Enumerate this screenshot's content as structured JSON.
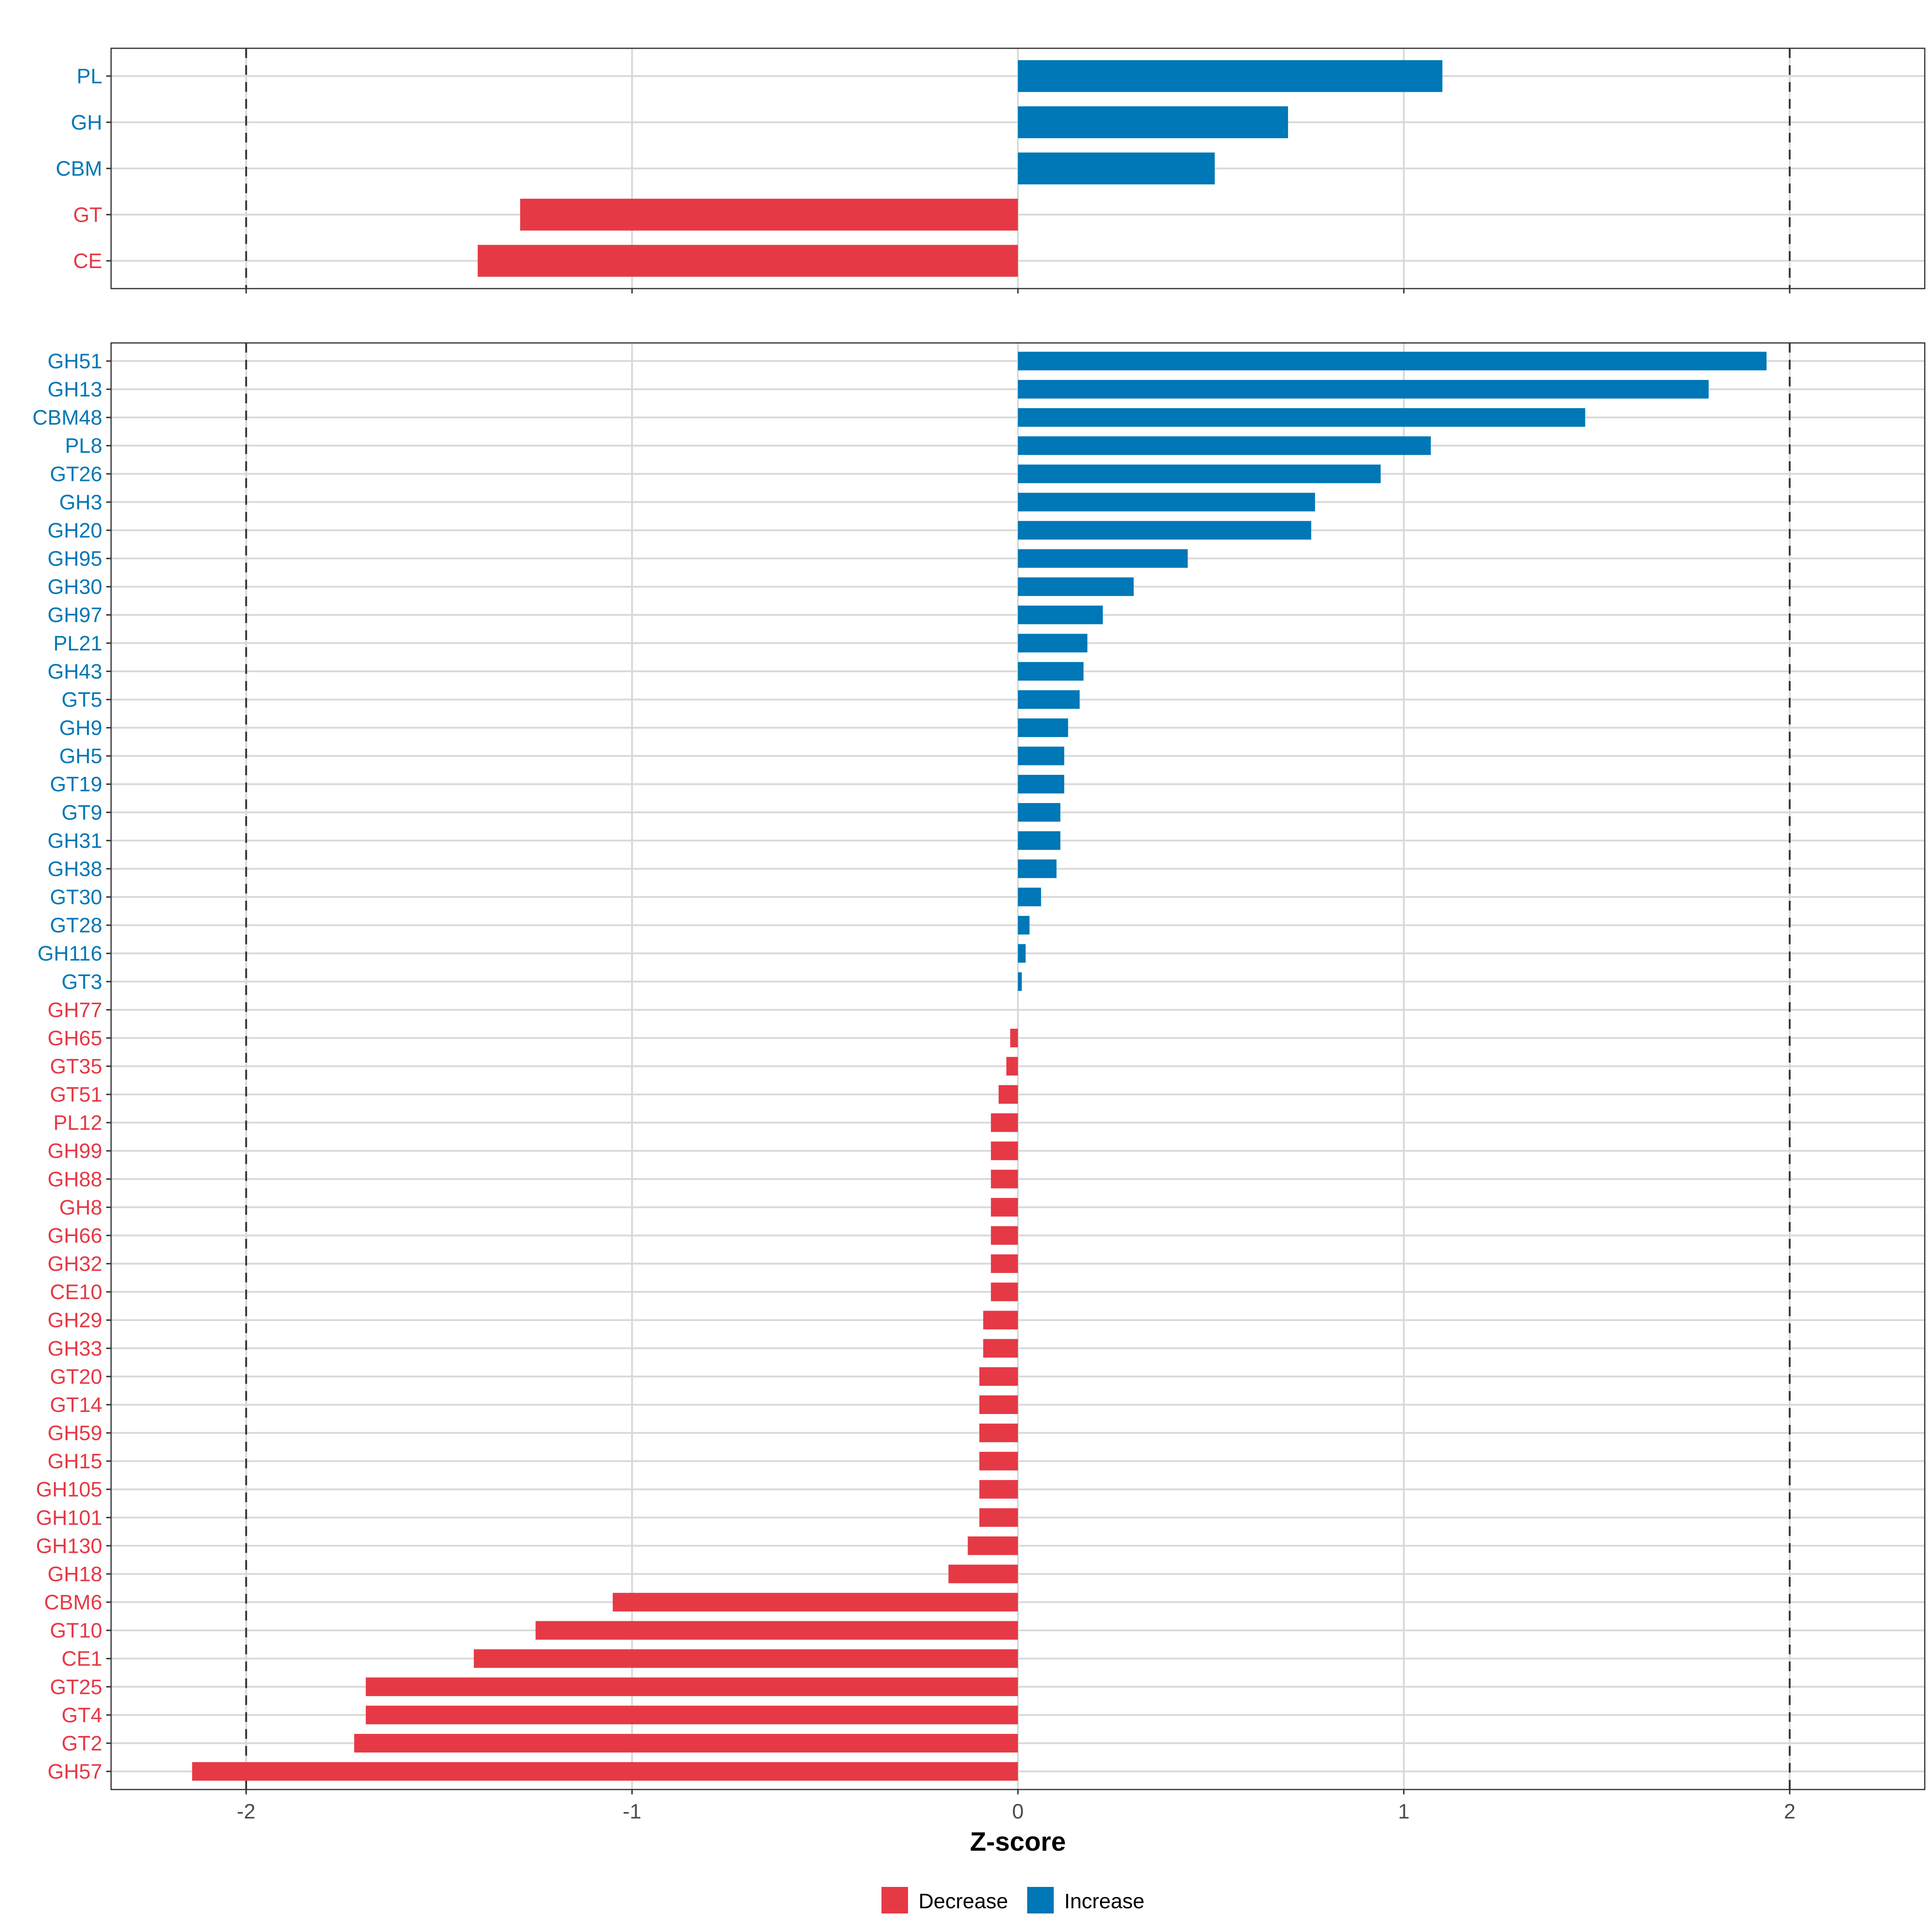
{
  "chart_data": [
    {
      "type": "bar",
      "orientation": "horizontal",
      "panel": "summary",
      "xlabel": "",
      "xlim": [
        -2.35,
        2.35
      ],
      "reference_lines": [
        -2,
        2
      ],
      "categories": [
        "PL",
        "GH",
        "CBM",
        "GT",
        "CE"
      ],
      "values": [
        1.1,
        0.7,
        0.51,
        -1.29,
        -1.4
      ],
      "groups": [
        "Increase",
        "Increase",
        "Increase",
        "Decrease",
        "Decrease"
      ]
    },
    {
      "type": "bar",
      "orientation": "horizontal",
      "panel": "families",
      "xlabel": "Z-score",
      "xlim": [
        -2.35,
        2.35
      ],
      "x_ticks": [
        "-2",
        "-1",
        "0",
        "1",
        "2"
      ],
      "reference_lines": [
        -2,
        2
      ],
      "categories": [
        "GH51",
        "GH13",
        "CBM48",
        "PL8",
        "GT26",
        "GH3",
        "GH20",
        "GH95",
        "GH30",
        "GH97",
        "PL21",
        "GH43",
        "GT5",
        "GH9",
        "GH5",
        "GT19",
        "GT9",
        "GH31",
        "GH38",
        "GT30",
        "GT28",
        "GH116",
        "GT3",
        "GH77",
        "GH65",
        "GT35",
        "GT51",
        "PL12",
        "GH99",
        "GH88",
        "GH8",
        "GH66",
        "GH32",
        "CE10",
        "GH29",
        "GH33",
        "GT20",
        "GT14",
        "GH59",
        "GH15",
        "GH105",
        "GH101",
        "GH130",
        "GH18",
        "CBM6",
        "GT10",
        "CE1",
        "GT25",
        "GT4",
        "GT2",
        "GH57"
      ],
      "values": [
        1.94,
        1.79,
        1.47,
        1.07,
        0.94,
        0.77,
        0.76,
        0.44,
        0.3,
        0.22,
        0.18,
        0.17,
        0.16,
        0.13,
        0.12,
        0.12,
        0.11,
        0.11,
        0.1,
        0.06,
        0.03,
        0.02,
        0.01,
        0.0,
        -0.02,
        -0.03,
        -0.05,
        -0.07,
        -0.07,
        -0.07,
        -0.07,
        -0.07,
        -0.07,
        -0.07,
        -0.09,
        -0.09,
        -0.1,
        -0.1,
        -0.1,
        -0.1,
        -0.1,
        -0.1,
        -0.13,
        -0.18,
        -1.05,
        -1.25,
        -1.41,
        -1.69,
        -1.69,
        -1.72,
        -2.14
      ],
      "groups": [
        "Increase",
        "Increase",
        "Increase",
        "Increase",
        "Increase",
        "Increase",
        "Increase",
        "Increase",
        "Increase",
        "Increase",
        "Increase",
        "Increase",
        "Increase",
        "Increase",
        "Increase",
        "Increase",
        "Increase",
        "Increase",
        "Increase",
        "Increase",
        "Increase",
        "Increase",
        "Increase",
        "Decrease",
        "Decrease",
        "Decrease",
        "Decrease",
        "Decrease",
        "Decrease",
        "Decrease",
        "Decrease",
        "Decrease",
        "Decrease",
        "Decrease",
        "Decrease",
        "Decrease",
        "Decrease",
        "Decrease",
        "Decrease",
        "Decrease",
        "Decrease",
        "Decrease",
        "Decrease",
        "Decrease",
        "Decrease",
        "Decrease",
        "Decrease",
        "Decrease",
        "Decrease",
        "Decrease",
        "Decrease"
      ]
    }
  ],
  "legend": {
    "placement": "bottom",
    "items": [
      {
        "key": "Decrease",
        "label": "Decrease",
        "color": "#E63946"
      },
      {
        "key": "Increase",
        "label": "Increase",
        "color": "#0077B6"
      }
    ]
  },
  "colors": {
    "Decrease": "#E63946",
    "Increase": "#0077B6"
  }
}
